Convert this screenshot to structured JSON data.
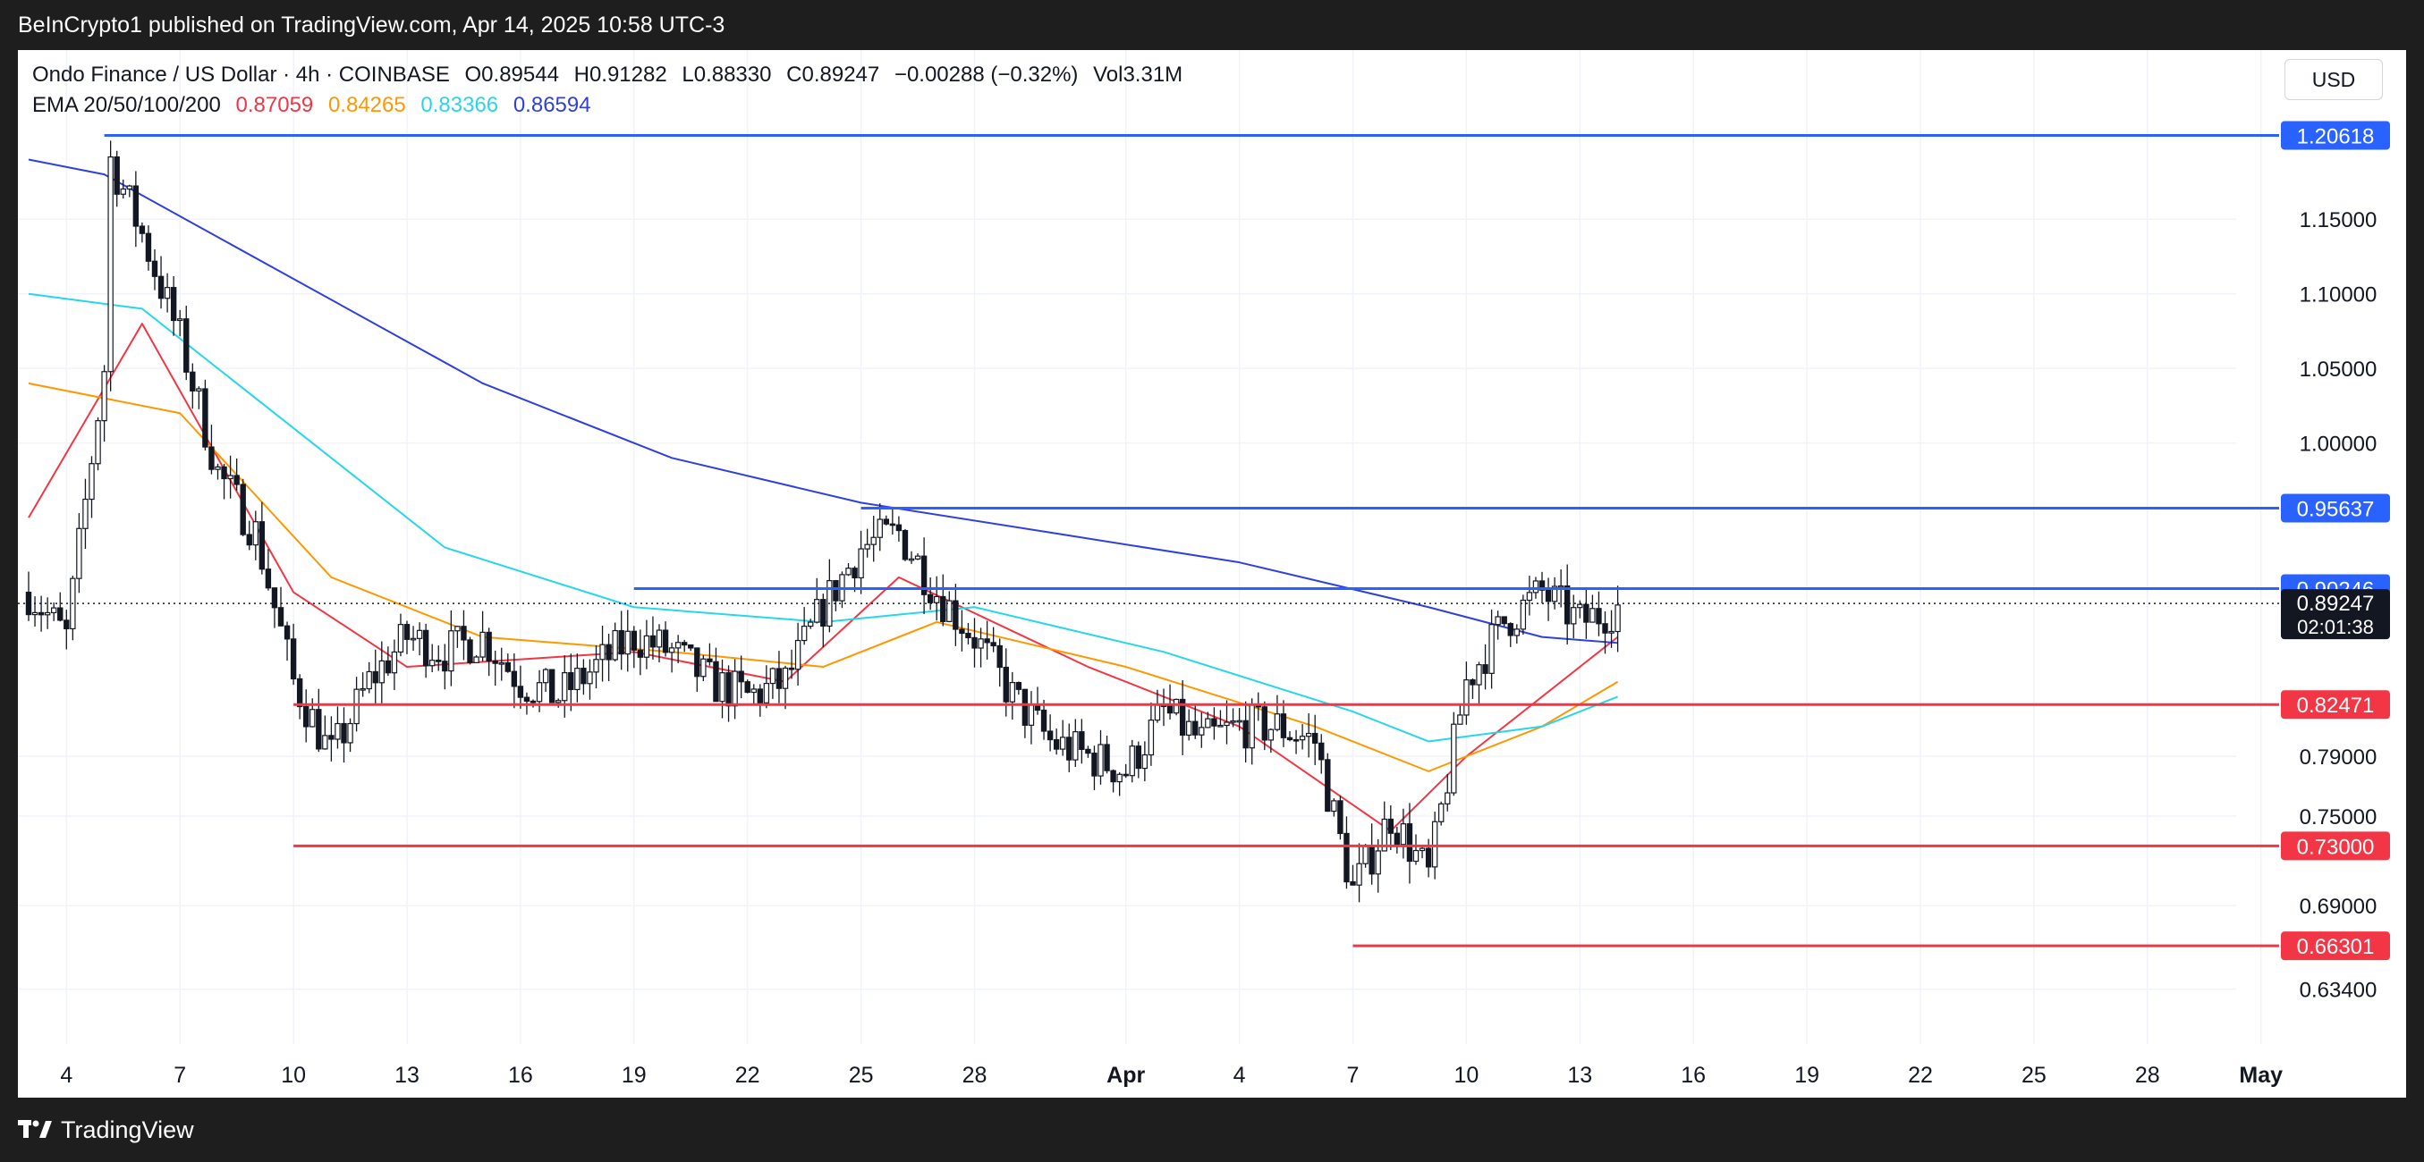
{
  "header": {
    "attribution": "BeInCrypto1 published on TradingView.com, Apr 14, 2025 10:58 UTC-3"
  },
  "footer": {
    "brand": "TradingView",
    "icon": "tradingview-logo-icon"
  },
  "symbol": {
    "name": "Ondo Finance / US Dollar · 4h · COINBASE",
    "open": "O0.89544",
    "high": "H0.91282",
    "low": "L0.88330",
    "close": "C0.89247",
    "change": "−0.00288 (−0.32%)",
    "volume": "Vol3.31M"
  },
  "ema": {
    "label": "EMA 20/50/100/200",
    "values": [
      {
        "value": "0.87059",
        "color": "#f23645"
      },
      {
        "value": "0.84265",
        "color": "#ff9800"
      },
      {
        "value": "0.83366",
        "color": "#26d7e8"
      },
      {
        "value": "0.86594",
        "color": "#2f3fe0"
      }
    ]
  },
  "currency": "USD",
  "chart_data": {
    "type": "candlestick",
    "timeframe": "4h",
    "x_axis_ticks": [
      "4",
      "7",
      "10",
      "13",
      "16",
      "19",
      "22",
      "25",
      "28",
      "Apr",
      "4",
      "7",
      "10",
      "13",
      "16",
      "19",
      "22",
      "25",
      "28",
      "May"
    ],
    "y_axis_ticks": [
      "1.15000",
      "1.10000",
      "1.05000",
      "1.00000",
      "0.79000",
      "0.75000",
      "0.69000",
      "0.63400"
    ],
    "ylim": [
      0.605,
      1.24
    ],
    "current_price": {
      "value": "0.89247",
      "countdown": "02:01:38"
    },
    "resistance_levels": [
      {
        "value": 1.20618,
        "label": "1.20618",
        "start_date": "Mar 5",
        "color": "#2962ff"
      },
      {
        "value": 0.95637,
        "label": "0.95637",
        "start_date": "Mar 25",
        "color": "#2962ff"
      },
      {
        "value": 0.90246,
        "label": "0.90246",
        "start_date": "Mar 19",
        "color": "#2962ff"
      }
    ],
    "support_levels": [
      {
        "value": 0.82471,
        "label": "0.82471",
        "start_date": "Mar 10",
        "color": "#f23645"
      },
      {
        "value": 0.73,
        "label": "0.73000",
        "start_date": "Mar 10",
        "color": "#f23645"
      },
      {
        "value": 0.66301,
        "label": "0.66301",
        "start_date": "Apr 7",
        "color": "#f23645"
      }
    ],
    "price_path": [
      [
        "Mar 3",
        0.9
      ],
      [
        "Mar 4",
        0.87
      ],
      [
        "Mar 5",
        1.05
      ],
      [
        "Mar 5",
        1.2
      ],
      [
        "Mar 6",
        1.14
      ],
      [
        "Mar 7",
        1.07
      ],
      [
        "Mar 8",
        0.98
      ],
      [
        "Mar 9",
        0.94
      ],
      [
        "Mar 10",
        0.84
      ],
      [
        "Mar 11",
        0.79
      ],
      [
        "Mar 12",
        0.84
      ],
      [
        "Mar 13",
        0.87
      ],
      [
        "Mar 14",
        0.86
      ],
      [
        "Mar 15",
        0.87
      ],
      [
        "Mar 16",
        0.84
      ],
      [
        "Mar 17",
        0.83
      ],
      [
        "Mar 18",
        0.85
      ],
      [
        "Mar 19",
        0.87
      ],
      [
        "Mar 20",
        0.86
      ],
      [
        "Mar 21",
        0.84
      ],
      [
        "Mar 22",
        0.83
      ],
      [
        "Mar 23",
        0.84
      ],
      [
        "Mar 24",
        0.89
      ],
      [
        "Mar 25",
        0.93
      ],
      [
        "Mar 26",
        0.94
      ],
      [
        "Mar 27",
        0.9
      ],
      [
        "Mar 28",
        0.87
      ],
      [
        "Mar 29",
        0.83
      ],
      [
        "Mar 30",
        0.8
      ],
      [
        "Mar 31",
        0.79
      ],
      [
        "Apr 1",
        0.78
      ],
      [
        "Apr 2",
        0.82
      ],
      [
        "Apr 3",
        0.8
      ],
      [
        "Apr 4",
        0.81
      ],
      [
        "Apr 5",
        0.81
      ],
      [
        "Apr 6",
        0.8
      ],
      [
        "Apr 7",
        0.7
      ],
      [
        "Apr 8",
        0.75
      ],
      [
        "Apr 9",
        0.71
      ],
      [
        "Apr 10",
        0.84
      ],
      [
        "Apr 11",
        0.88
      ],
      [
        "Apr 12",
        0.9
      ],
      [
        "Apr 13",
        0.88
      ],
      [
        "Apr 14",
        0.89
      ]
    ],
    "ema_lines": [
      {
        "name": "EMA 20",
        "color": "#f23645",
        "points": [
          [
            "Mar 3",
            0.95
          ],
          [
            "Mar 6",
            1.08
          ],
          [
            "Mar 10",
            0.9
          ],
          [
            "Mar 13",
            0.85
          ],
          [
            "Mar 19",
            0.86
          ],
          [
            "Mar 23",
            0.84
          ],
          [
            "Mar 26",
            0.91
          ],
          [
            "Mar 31",
            0.85
          ],
          [
            "Apr 4",
            0.81
          ],
          [
            "Apr 8",
            0.74
          ],
          [
            "Apr 10",
            0.79
          ],
          [
            "Apr 14",
            0.87
          ]
        ]
      },
      {
        "name": "EMA 50",
        "color": "#ff9800",
        "points": [
          [
            "Mar 3",
            1.04
          ],
          [
            "Mar 7",
            1.02
          ],
          [
            "Mar 11",
            0.91
          ],
          [
            "Mar 15",
            0.87
          ],
          [
            "Mar 20",
            0.86
          ],
          [
            "Mar 24",
            0.85
          ],
          [
            "Mar 27",
            0.88
          ],
          [
            "Apr 1",
            0.85
          ],
          [
            "Apr 6",
            0.81
          ],
          [
            "Apr 9",
            0.78
          ],
          [
            "Apr 12",
            0.81
          ],
          [
            "Apr 14",
            0.84
          ]
        ]
      },
      {
        "name": "EMA 100",
        "color": "#26d7e8",
        "points": [
          [
            "Mar 3",
            1.1
          ],
          [
            "Mar 6",
            1.09
          ],
          [
            "Mar 10",
            1.01
          ],
          [
            "Mar 14",
            0.93
          ],
          [
            "Mar 19",
            0.89
          ],
          [
            "Mar 24",
            0.88
          ],
          [
            "Mar 28",
            0.89
          ],
          [
            "Apr 2",
            0.86
          ],
          [
            "Apr 7",
            0.82
          ],
          [
            "Apr 9",
            0.8
          ],
          [
            "Apr 12",
            0.81
          ],
          [
            "Apr 14",
            0.83
          ]
        ]
      },
      {
        "name": "EMA 200",
        "color": "#2f3fe0",
        "points": [
          [
            "Mar 3",
            1.19
          ],
          [
            "Mar 5",
            1.18
          ],
          [
            "Mar 10",
            1.11
          ],
          [
            "Mar 15",
            1.04
          ],
          [
            "Mar 20",
            0.99
          ],
          [
            "Mar 25",
            0.96
          ],
          [
            "Mar 30",
            0.94
          ],
          [
            "Apr 4",
            0.92
          ],
          [
            "Apr 9",
            0.89
          ],
          [
            "Apr 12",
            0.87
          ],
          [
            "Apr 14",
            0.866
          ]
        ]
      }
    ]
  }
}
